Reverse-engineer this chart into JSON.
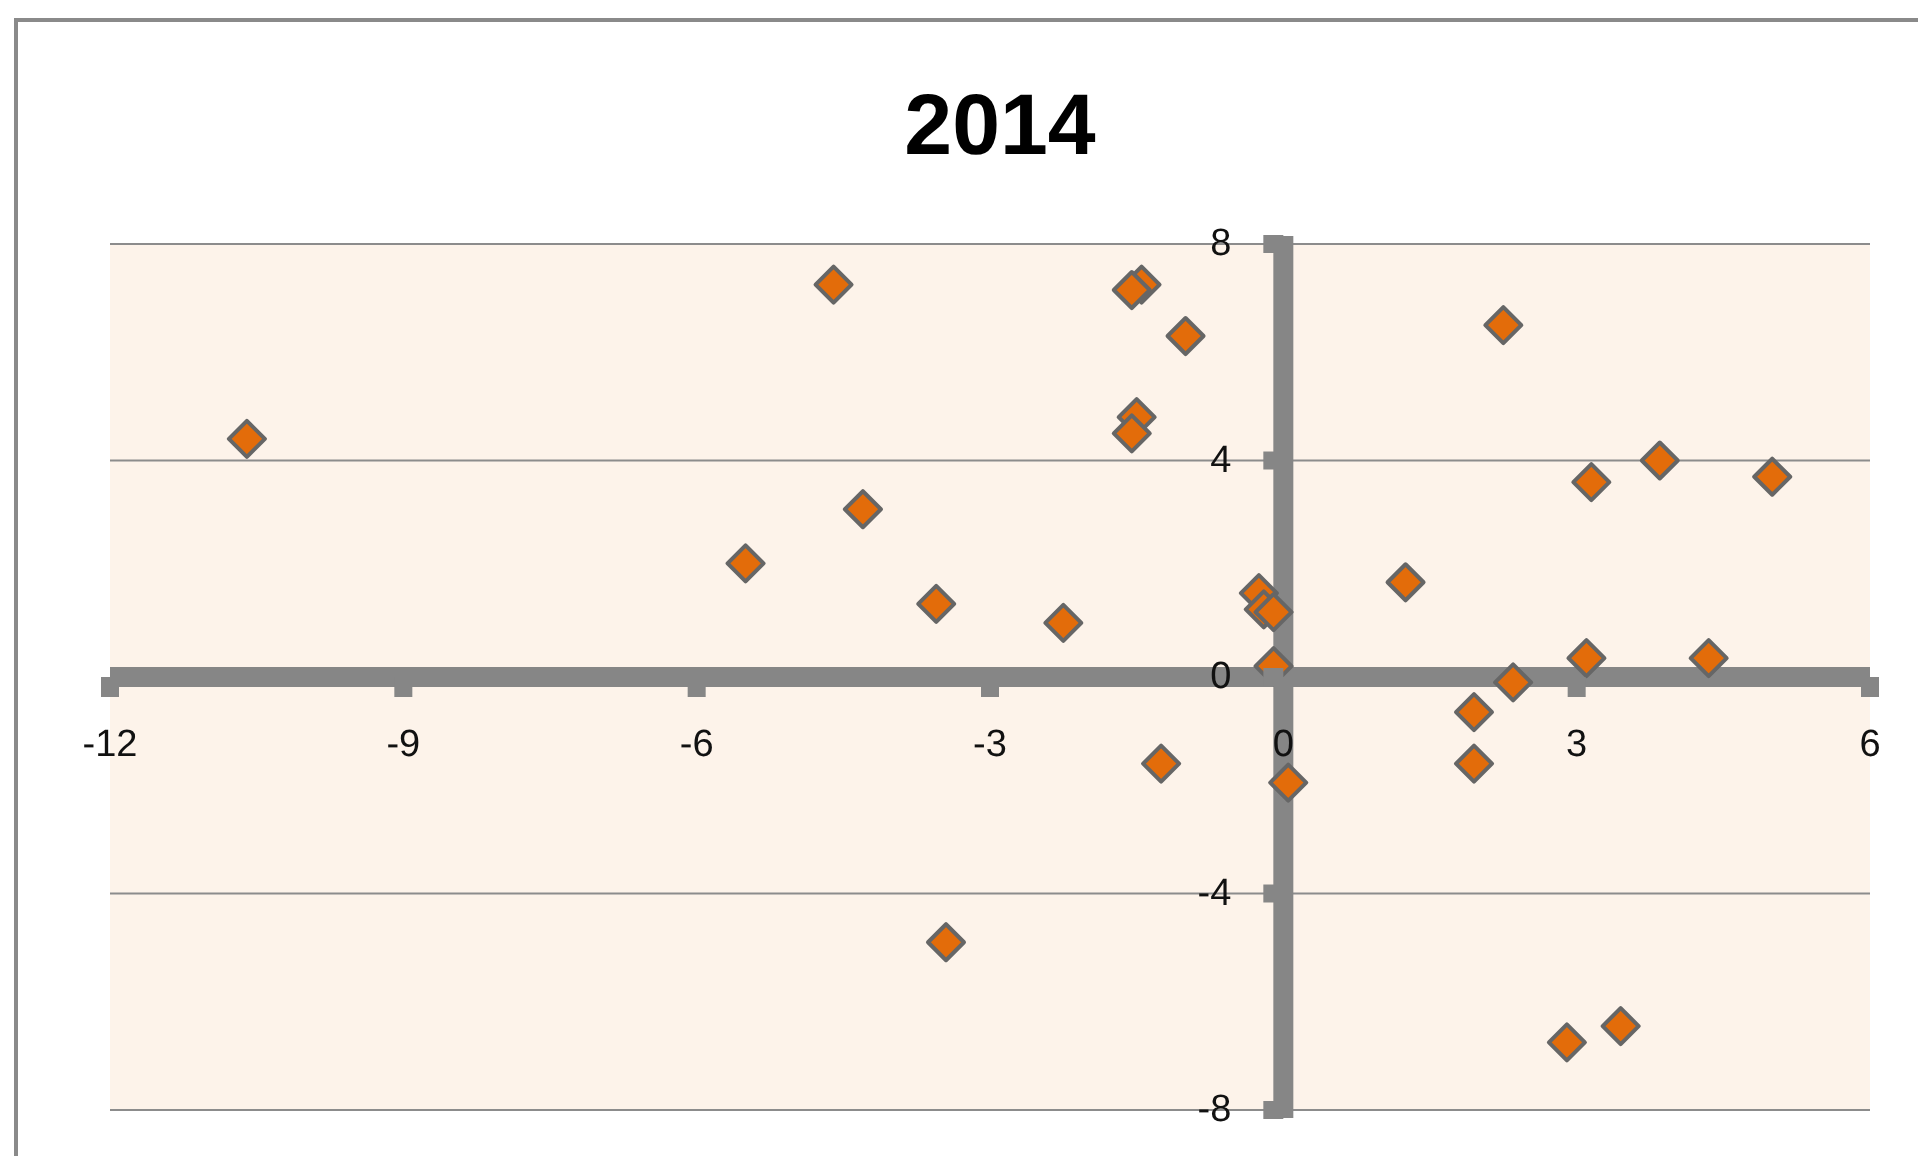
{
  "chart_data": {
    "type": "scatter",
    "title": "2014",
    "x": [
      -10.6,
      -4.6,
      -1.45,
      -1.55,
      -1.0,
      -1.5,
      -1.55,
      -4.3,
      -5.5,
      -3.55,
      -2.25,
      -0.25,
      -0.2,
      -0.1,
      -0.1,
      2.25,
      3.85,
      3.15,
      5.0,
      1.25,
      3.1,
      4.35,
      2.35,
      1.95,
      -1.25,
      0.05,
      -3.45,
      1.95,
      2.9,
      3.45
    ],
    "values": [
      4.4,
      7.25,
      7.25,
      7.15,
      6.3,
      4.8,
      4.5,
      3.1,
      2.1,
      1.35,
      1.0,
      1.55,
      1.25,
      1.2,
      0.2,
      6.5,
      4.0,
      3.6,
      3.7,
      1.75,
      0.35,
      0.35,
      -0.1,
      -0.65,
      -1.6,
      -1.95,
      -4.9,
      -1.6,
      -6.75,
      -6.45
    ],
    "color": "#e36c0a",
    "xlim": [
      -12,
      6
    ],
    "xticks": [
      -12,
      -9,
      -6,
      -3,
      0,
      3,
      6
    ],
    "ylim": [
      -8,
      8
    ],
    "yticks": [
      -8,
      -4,
      0,
      4,
      8
    ],
    "grid": "y",
    "marker": "diamond"
  }
}
